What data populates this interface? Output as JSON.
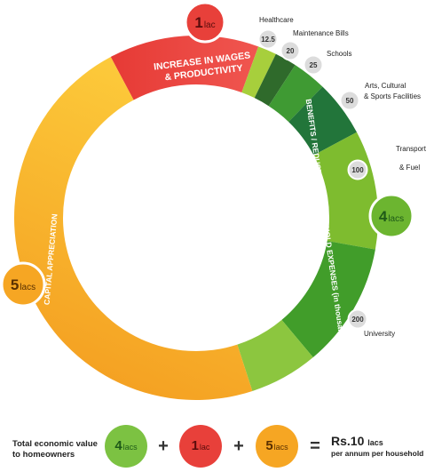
{
  "chart_data": {
    "type": "pie",
    "segments": [
      {
        "label": "INCREASE IN WAGES & PRODUCTIVITY",
        "value_lacs": 1,
        "badge": "1",
        "badge_unit": "lac",
        "color": "#e8403a"
      },
      {
        "label": "BENEFITS / REDUCTION IN HOUSEHOLD EXPENSES (in thousands)",
        "value_lacs": 4,
        "badge": "4",
        "badge_unit": "lacs",
        "color": "#6cb530"
      },
      {
        "label": "CAPITAL APPRECIATION",
        "value_lacs": 5,
        "badge": "5",
        "badge_unit": "lacs",
        "color": "#f6a623"
      }
    ],
    "benefit_items": [
      {
        "label": "Healthcare",
        "value": 12.5
      },
      {
        "label": "Maintenance Bills",
        "value": 20
      },
      {
        "label": "Schools",
        "value": 25
      },
      {
        "label": "Arts, Cultural & Sports Facilities",
        "value": 50
      },
      {
        "label": "Transport & Fuel",
        "value": 100
      },
      {
        "label": "University",
        "value": 200
      }
    ],
    "benefit_value_labels": [
      "12.5",
      "20",
      "25",
      "50",
      "100",
      "200"
    ],
    "benefit_text_labels": [
      "Healthcare",
      "Maintenance Bills",
      "Schools",
      "Arts, Cultural",
      "& Sports Facilities",
      "Transport",
      "& Fuel",
      "University"
    ],
    "arc_labels": {
      "wages_line1": "INCREASE IN WAGES",
      "wages_line2": "& PRODUCTIVITY",
      "benefits": "BENEFITS / REDUCTION IN HOUSEHOLD EXPENSES (in thousands)",
      "capital": "CAPITAL APPRECIATION"
    }
  },
  "summary": {
    "caption_line1": "Total economic value",
    "caption_line2": "to homeowners",
    "items": [
      {
        "num": "4",
        "unit": "lacs",
        "color": "#7cc242"
      },
      {
        "num": "1",
        "unit": "lac",
        "color": "#e8403a"
      },
      {
        "num": "5",
        "unit": "lacs",
        "color": "#f6a623"
      }
    ],
    "plus": "+",
    "equals": "=",
    "total_value": "Rs.10",
    "total_unit": "lacs",
    "total_note": "per annum per household"
  }
}
